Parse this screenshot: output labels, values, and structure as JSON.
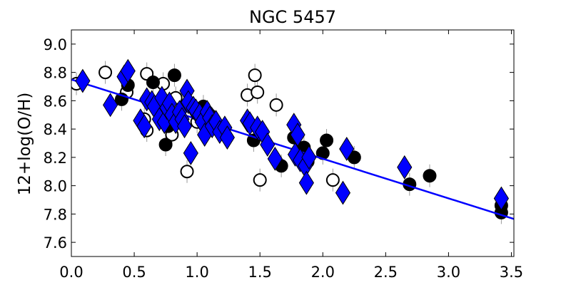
{
  "chart_data": {
    "type": "scatter",
    "title": "NGC 5457",
    "xlabel": "",
    "ylabel": "12+log(O/H)",
    "xlim": [
      0.0,
      3.52
    ],
    "ylim": [
      7.5,
      9.1
    ],
    "x_ticks": [
      "0.0",
      "0.5",
      "1.0",
      "1.5",
      "2.0",
      "2.5",
      "3.0",
      "3.5"
    ],
    "y_ticks": [
      "7.6",
      "7.8",
      "8.0",
      "8.2",
      "8.4",
      "8.6",
      "8.8",
      "9.0"
    ],
    "grid": false,
    "colors": {
      "filled": "#000000",
      "open": "#000000",
      "diamond": "#0000ff",
      "fit": "#0000ff",
      "error": "#999999"
    },
    "series": [
      {
        "marker": "open-circle",
        "points": [
          [
            0.04,
            8.72
          ],
          [
            0.27,
            8.8
          ],
          [
            0.44,
            8.66
          ],
          [
            0.58,
            8.47
          ],
          [
            0.6,
            8.79
          ],
          [
            0.6,
            8.39
          ],
          [
            0.73,
            8.72
          ],
          [
            0.8,
            8.36
          ],
          [
            0.83,
            8.62
          ],
          [
            0.92,
            8.1
          ],
          [
            1.4,
            8.64
          ],
          [
            1.46,
            8.78
          ],
          [
            1.48,
            8.66
          ],
          [
            1.5,
            8.04
          ],
          [
            1.63,
            8.57
          ],
          [
            2.08,
            8.04
          ],
          [
            1.0,
            8.45
          ],
          [
            1.1,
            8.5
          ]
        ]
      },
      {
        "marker": "filled-circle",
        "points": [
          [
            0.4,
            8.61
          ],
          [
            0.45,
            8.71
          ],
          [
            0.65,
            8.73
          ],
          [
            0.75,
            8.29
          ],
          [
            0.77,
            8.42
          ],
          [
            0.82,
            8.78
          ],
          [
            1.05,
            8.56
          ],
          [
            1.08,
            8.52
          ],
          [
            1.45,
            8.32
          ],
          [
            1.67,
            8.14
          ],
          [
            1.77,
            8.34
          ],
          [
            1.85,
            8.27
          ],
          [
            1.88,
            8.17
          ],
          [
            2.0,
            8.23
          ],
          [
            2.03,
            8.32
          ],
          [
            2.25,
            8.2
          ],
          [
            2.69,
            8.01
          ],
          [
            2.85,
            8.07
          ],
          [
            3.42,
            7.81
          ],
          [
            3.42,
            7.86
          ],
          [
            0.85,
            8.5
          ],
          [
            1.13,
            8.45
          ]
        ]
      },
      {
        "marker": "diamond",
        "points": [
          [
            0.09,
            8.74
          ],
          [
            0.31,
            8.57
          ],
          [
            0.42,
            8.77
          ],
          [
            0.45,
            8.81
          ],
          [
            0.55,
            8.46
          ],
          [
            0.58,
            8.42
          ],
          [
            0.6,
            8.61
          ],
          [
            0.64,
            8.59
          ],
          [
            0.66,
            8.56
          ],
          [
            0.7,
            8.47
          ],
          [
            0.72,
            8.62
          ],
          [
            0.74,
            8.45
          ],
          [
            0.76,
            8.55
          ],
          [
            0.78,
            8.58
          ],
          [
            0.8,
            8.5
          ],
          [
            0.83,
            8.45
          ],
          [
            0.86,
            8.52
          ],
          [
            0.88,
            8.47
          ],
          [
            0.9,
            8.42
          ],
          [
            0.92,
            8.67
          ],
          [
            0.93,
            8.59
          ],
          [
            0.95,
            8.23
          ],
          [
            0.97,
            8.55
          ],
          [
            0.99,
            8.53
          ],
          [
            1.02,
            8.5
          ],
          [
            1.04,
            8.45
          ],
          [
            1.06,
            8.36
          ],
          [
            1.08,
            8.52
          ],
          [
            1.1,
            8.48
          ],
          [
            1.12,
            8.42
          ],
          [
            1.15,
            8.45
          ],
          [
            1.18,
            8.38
          ],
          [
            1.22,
            8.41
          ],
          [
            1.24,
            8.34
          ],
          [
            1.4,
            8.46
          ],
          [
            1.42,
            8.44
          ],
          [
            1.48,
            8.41
          ],
          [
            1.52,
            8.38
          ],
          [
            1.56,
            8.29
          ],
          [
            1.62,
            8.19
          ],
          [
            1.77,
            8.43
          ],
          [
            1.78,
            8.22
          ],
          [
            1.8,
            8.36
          ],
          [
            1.82,
            8.18
          ],
          [
            1.86,
            8.14
          ],
          [
            1.87,
            8.02
          ],
          [
            1.89,
            8.2
          ],
          [
            2.16,
            7.95
          ],
          [
            2.19,
            8.26
          ],
          [
            2.65,
            8.13
          ],
          [
            3.42,
            7.91
          ]
        ]
      }
    ],
    "fit_line": {
      "x": [
        0.0,
        3.52
      ],
      "y": [
        8.75,
        7.765
      ]
    }
  }
}
